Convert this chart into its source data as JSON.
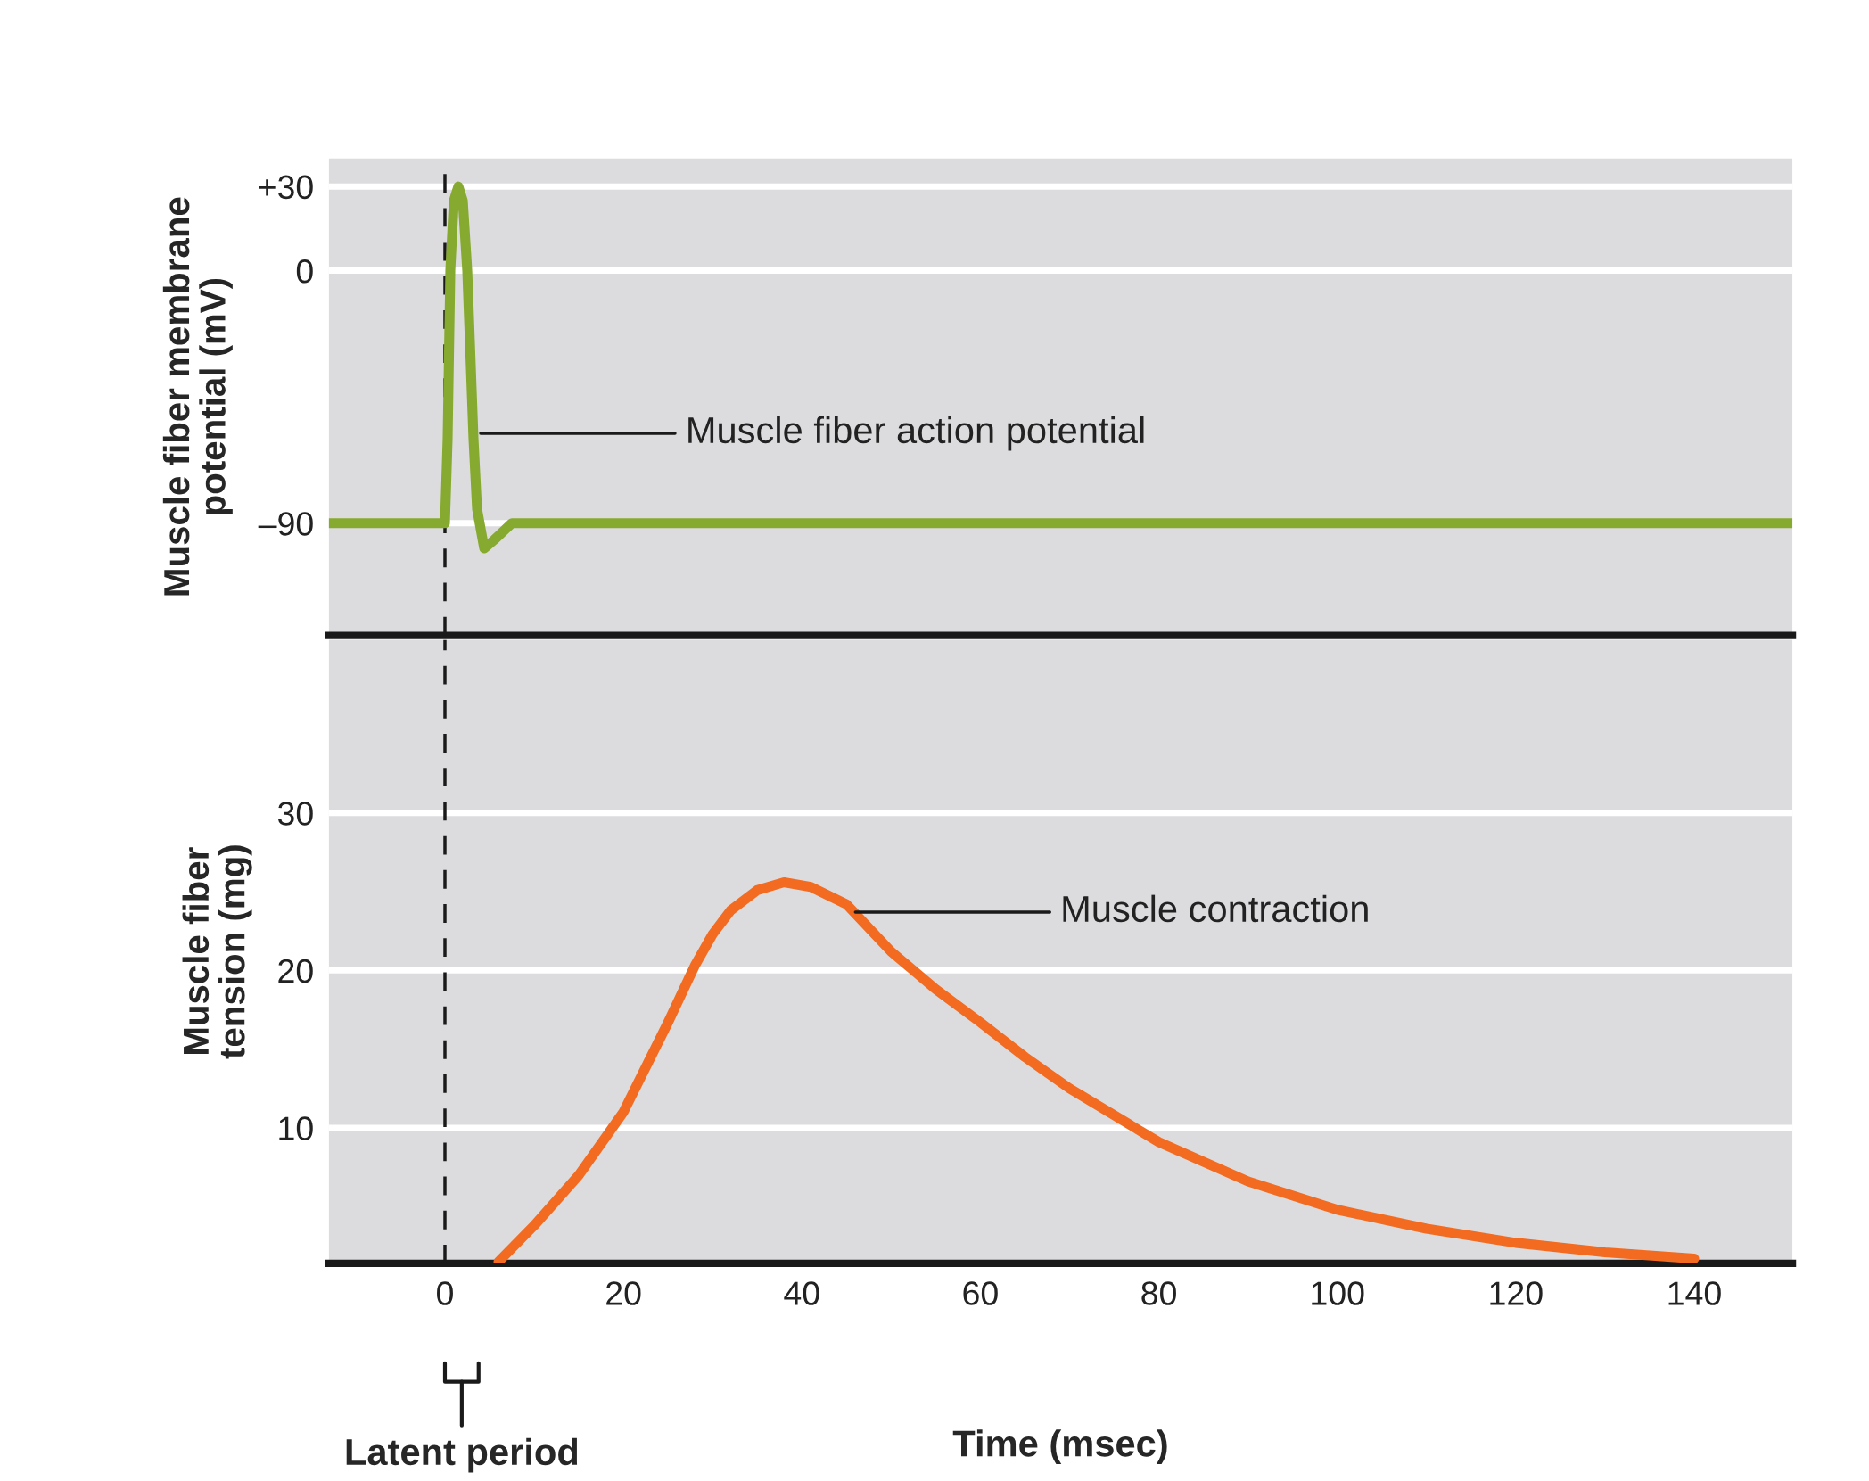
{
  "chart_data": [
    {
      "type": "line",
      "ylabel": "Muscle fiber membrane\npotential (mV)",
      "xlim": [
        -13,
        151
      ],
      "ylim": [
        -130,
        40
      ],
      "yticks": [
        {
          "value": 30,
          "label": "+30"
        },
        0,
        {
          "value": -90,
          "label": "–90"
        }
      ],
      "tick_labels": "y",
      "grid": "y",
      "series": [
        {
          "color": "#86a92f",
          "x": [
            -13,
            0,
            0.3,
            0.6,
            1.0,
            1.5,
            2.0,
            2.5,
            3.2,
            3.6,
            4.4,
            5.5,
            7.5,
            151
          ],
          "values": [
            -90,
            -90,
            -60,
            0,
            25,
            30,
            25,
            0,
            -60,
            -85,
            -99,
            -96,
            -90,
            -90
          ]
        }
      ],
      "ref_lines": [
        {
          "axis": "x",
          "value": 0,
          "line_style": "dashed",
          "color": "#1a1a1a"
        }
      ],
      "annotations": [
        {
          "text": "Muscle fiber action potential",
          "x": 4,
          "y": -58
        }
      ]
    },
    {
      "type": "line",
      "ylabel": "Muscle fiber\ntension (mg)",
      "xlabel": "Time (msec)",
      "xlim": [
        -13,
        151
      ],
      "ylim": [
        1.4,
        41
      ],
      "xticks": [
        0,
        20,
        40,
        60,
        80,
        100,
        120,
        140
      ],
      "yticks": [
        10,
        20,
        30
      ],
      "grid": "y",
      "series": [
        {
          "color": "#f26b21",
          "x": [
            6,
            10,
            15,
            20,
            25,
            28,
            30,
            32,
            35,
            38,
            41,
            45,
            50,
            55,
            60,
            65,
            70,
            80,
            90,
            100,
            110,
            120,
            130,
            140
          ],
          "values": [
            1.5,
            3.8,
            7.0,
            11,
            16.7,
            20.3,
            22.3,
            23.8,
            25.1,
            25.6,
            25.3,
            24.2,
            21.2,
            18.8,
            16.7,
            14.5,
            12.5,
            9.1,
            6.6,
            4.8,
            3.6,
            2.7,
            2.1,
            1.7
          ]
        }
      ],
      "ref_lines": [
        {
          "axis": "x",
          "value": 0,
          "line_style": "dashed",
          "color": "#1a1a1a"
        }
      ],
      "annotations": [
        {
          "text": "Muscle contraction",
          "x": 46,
          "y": 23.7
        },
        "Latent period"
      ]
    }
  ]
}
